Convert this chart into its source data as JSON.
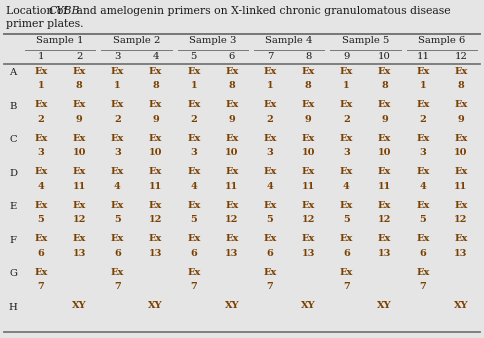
{
  "bg_color": "#e5e5e5",
  "header_samples": [
    "Sample 1",
    "Sample 2",
    "Sample 3",
    "Sample 4",
    "Sample 5",
    "Sample 6"
  ],
  "header_nums": [
    "1",
    "2",
    "3",
    "4",
    "5",
    "6",
    "7",
    "8",
    "9",
    "10",
    "11",
    "12"
  ],
  "row_labels": [
    "A",
    "B",
    "C",
    "D",
    "E",
    "F",
    "G",
    "H"
  ],
  "cell_data": {
    "A": [
      [
        "Ex",
        "1"
      ],
      [
        "Ex",
        "8"
      ],
      [
        "Ex",
        "1"
      ],
      [
        "Ex",
        "8"
      ],
      [
        "Ex",
        "1"
      ],
      [
        "Ex",
        "8"
      ],
      [
        "Ex",
        "1"
      ],
      [
        "Ex",
        "8"
      ],
      [
        "Ex",
        "1"
      ],
      [
        "Ex",
        "8"
      ],
      [
        "Ex",
        "1"
      ],
      [
        "Ex",
        "8"
      ]
    ],
    "B": [
      [
        "Ex",
        "2"
      ],
      [
        "Ex",
        "9"
      ],
      [
        "Ex",
        "2"
      ],
      [
        "Ex",
        "9"
      ],
      [
        "Ex",
        "2"
      ],
      [
        "Ex",
        "9"
      ],
      [
        "Ex",
        "2"
      ],
      [
        "Ex",
        "9"
      ],
      [
        "Ex",
        "2"
      ],
      [
        "Ex",
        "9"
      ],
      [
        "Ex",
        "2"
      ],
      [
        "Ex",
        "9"
      ]
    ],
    "C": [
      [
        "Ex",
        "3"
      ],
      [
        "Ex",
        "10"
      ],
      [
        "Ex",
        "3"
      ],
      [
        "Ex",
        "10"
      ],
      [
        "Ex",
        "3"
      ],
      [
        "Ex",
        "10"
      ],
      [
        "Ex",
        "3"
      ],
      [
        "Ex",
        "10"
      ],
      [
        "Ex",
        "3"
      ],
      [
        "Ex",
        "10"
      ],
      [
        "Ex",
        "3"
      ],
      [
        "Ex",
        "10"
      ]
    ],
    "D": [
      [
        "Ex",
        "4"
      ],
      [
        "Ex",
        "11"
      ],
      [
        "Ex",
        "4"
      ],
      [
        "Ex",
        "11"
      ],
      [
        "Ex",
        "4"
      ],
      [
        "Ex",
        "11"
      ],
      [
        "Ex",
        "4"
      ],
      [
        "Ex",
        "11"
      ],
      [
        "Ex",
        "4"
      ],
      [
        "Ex",
        "11"
      ],
      [
        "Ex",
        "4"
      ],
      [
        "Ex",
        "11"
      ]
    ],
    "E": [
      [
        "Ex",
        "5"
      ],
      [
        "Ex",
        "12"
      ],
      [
        "Ex",
        "5"
      ],
      [
        "Ex",
        "12"
      ],
      [
        "Ex",
        "5"
      ],
      [
        "Ex",
        "12"
      ],
      [
        "Ex",
        "5"
      ],
      [
        "Ex",
        "12"
      ],
      [
        "Ex",
        "5"
      ],
      [
        "Ex",
        "12"
      ],
      [
        "Ex",
        "5"
      ],
      [
        "Ex",
        "12"
      ]
    ],
    "F": [
      [
        "Ex",
        "6"
      ],
      [
        "Ex",
        "13"
      ],
      [
        "Ex",
        "6"
      ],
      [
        "Ex",
        "13"
      ],
      [
        "Ex",
        "6"
      ],
      [
        "Ex",
        "13"
      ],
      [
        "Ex",
        "6"
      ],
      [
        "Ex",
        "13"
      ],
      [
        "Ex",
        "6"
      ],
      [
        "Ex",
        "13"
      ],
      [
        "Ex",
        "6"
      ],
      [
        "Ex",
        "13"
      ]
    ],
    "G": [
      [
        "Ex",
        "7"
      ],
      [
        "",
        ""
      ],
      [
        "Ex",
        "7"
      ],
      [
        "",
        ""
      ],
      [
        "Ex",
        "7"
      ],
      [
        "",
        ""
      ],
      [
        "Ex",
        "7"
      ],
      [
        "",
        ""
      ],
      [
        "Ex",
        "7"
      ],
      [
        "",
        ""
      ],
      [
        "Ex",
        "7"
      ],
      [
        "",
        ""
      ]
    ],
    "H": [
      [
        "",
        ""
      ],
      [
        "XY",
        ""
      ],
      [
        "",
        ""
      ],
      [
        "XY",
        ""
      ],
      [
        "",
        ""
      ],
      [
        "XY",
        ""
      ],
      [
        "",
        ""
      ],
      [
        "XY",
        ""
      ],
      [
        "",
        ""
      ],
      [
        "XY",
        ""
      ],
      [
        "",
        ""
      ],
      [
        "XY",
        ""
      ]
    ]
  },
  "text_color": "#7b3f00",
  "line_color": "#777777",
  "title_fontsize": 7.8,
  "header_fontsize": 7.2,
  "cell_fontsize": 7.0,
  "row_label_fontsize": 7.2,
  "num_header_fontsize": 7.2
}
